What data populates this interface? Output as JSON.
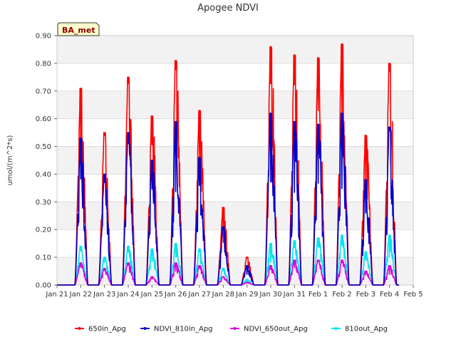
{
  "chart_data": {
    "type": "line",
    "title": "Apogee NDVI",
    "ylabel": "umol/(m^2*s)",
    "xlabel": "",
    "badge": "BA_met",
    "ylim": [
      0,
      0.9
    ],
    "yticks": [
      "0.00",
      "0.10",
      "0.20",
      "0.30",
      "0.40",
      "0.50",
      "0.60",
      "0.70",
      "0.80",
      "0.90"
    ],
    "xlim": [
      0,
      15
    ],
    "xticks": [
      "Jan 21",
      "Jan 22",
      "Jan 23",
      "Jan 24",
      "Jan 25",
      "Jan 26",
      "Jan 27",
      "Jan 28",
      "Jan 29",
      "Jan 30",
      "Jan 31",
      "Feb 1",
      "Feb 2",
      "Feb 3",
      "Feb 4",
      "Feb 5"
    ],
    "grid_bands": true,
    "legend_position": "bottom",
    "series": [
      {
        "name": "650in_Apg",
        "color": "#ff0000",
        "peaks": [
          {
            "day": 1,
            "value": 0.71
          },
          {
            "day": 2,
            "value": 0.55
          },
          {
            "day": 3,
            "value": 0.75
          },
          {
            "day": 4,
            "value": 0.61
          },
          {
            "day": 5,
            "value": 0.81
          },
          {
            "day": 6,
            "value": 0.63
          },
          {
            "day": 7,
            "value": 0.28
          },
          {
            "day": 8,
            "value": 0.1
          },
          {
            "day": 9,
            "value": 0.86
          },
          {
            "day": 10,
            "value": 0.83
          },
          {
            "day": 11,
            "value": 0.82
          },
          {
            "day": 12,
            "value": 0.87
          },
          {
            "day": 13,
            "value": 0.54
          },
          {
            "day": 14,
            "value": 0.8
          }
        ]
      },
      {
        "name": "NDVI_810in_Apg",
        "color": "#0000cc",
        "peaks": [
          {
            "day": 1,
            "value": 0.53
          },
          {
            "day": 2,
            "value": 0.4
          },
          {
            "day": 3,
            "value": 0.55
          },
          {
            "day": 4,
            "value": 0.45
          },
          {
            "day": 5,
            "value": 0.59
          },
          {
            "day": 6,
            "value": 0.46
          },
          {
            "day": 7,
            "value": 0.21
          },
          {
            "day": 8,
            "value": 0.07
          },
          {
            "day": 9,
            "value": 0.62
          },
          {
            "day": 10,
            "value": 0.59
          },
          {
            "day": 11,
            "value": 0.58
          },
          {
            "day": 12,
            "value": 0.62
          },
          {
            "day": 13,
            "value": 0.38
          },
          {
            "day": 14,
            "value": 0.57
          }
        ]
      },
      {
        "name": "NDVI_650out_Apg",
        "color": "#dd00dd",
        "peaks": [
          {
            "day": 1,
            "value": 0.08
          },
          {
            "day": 2,
            "value": 0.06
          },
          {
            "day": 3,
            "value": 0.08
          },
          {
            "day": 4,
            "value": 0.03
          },
          {
            "day": 5,
            "value": 0.08
          },
          {
            "day": 6,
            "value": 0.07
          },
          {
            "day": 7,
            "value": 0.03
          },
          {
            "day": 8,
            "value": 0.01
          },
          {
            "day": 9,
            "value": 0.07
          },
          {
            "day": 10,
            "value": 0.09
          },
          {
            "day": 11,
            "value": 0.09
          },
          {
            "day": 12,
            "value": 0.09
          },
          {
            "day": 13,
            "value": 0.05
          },
          {
            "day": 14,
            "value": 0.07
          }
        ]
      },
      {
        "name": "810out_Apg",
        "color": "#00e5ee",
        "peaks": [
          {
            "day": 1,
            "value": 0.14
          },
          {
            "day": 2,
            "value": 0.1
          },
          {
            "day": 3,
            "value": 0.14
          },
          {
            "day": 4,
            "value": 0.13
          },
          {
            "day": 5,
            "value": 0.15
          },
          {
            "day": 6,
            "value": 0.13
          },
          {
            "day": 7,
            "value": 0.06
          },
          {
            "day": 8,
            "value": 0.02
          },
          {
            "day": 9,
            "value": 0.15
          },
          {
            "day": 10,
            "value": 0.16
          },
          {
            "day": 11,
            "value": 0.17
          },
          {
            "day": 12,
            "value": 0.18
          },
          {
            "day": 13,
            "value": 0.12
          },
          {
            "day": 14,
            "value": 0.18
          }
        ]
      }
    ]
  }
}
